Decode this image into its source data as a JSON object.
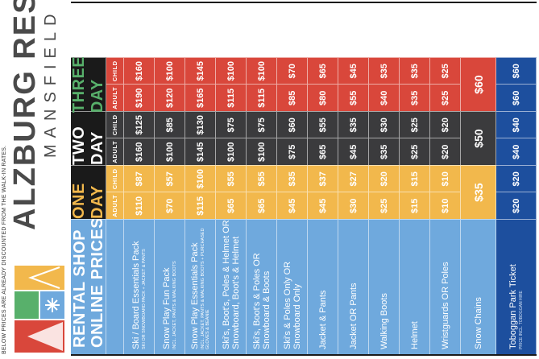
{
  "brand": {
    "name": "ALZBURG RESORT",
    "sub": "MANSFIELD",
    "note": "BELOW PRICES ARE ALREADY DISCOUNTED FROM THE WALK-IN RATES.",
    "logo_icon": "abstract-mountain-snowflake-logo"
  },
  "header": {
    "title_line1": "RENTAL SHOP",
    "title_line2": "ONLINE PRICES",
    "groups": [
      "ONE DAY",
      "TWO DAY",
      "THREE DAY"
    ],
    "adult": "ADULT",
    "child": "CHILD"
  },
  "items": [
    {
      "name": "Ski / Board Essentials Pack",
      "sub": "SKI OR SNOWBOARD PACK + JACKET & PANTS",
      "prices": [
        "$110",
        "$87",
        "$160",
        "$125",
        "$190",
        "$160"
      ]
    },
    {
      "name": "Snow Play Fun Pack",
      "sub": "INCL. JACKET, PANTS & WALKING BOOTS",
      "prices": [
        "$70",
        "$57",
        "$100",
        "$85",
        "$120",
        "$100"
      ]
    },
    {
      "name": "Snow Play Essentials Pack",
      "sub": "INCL. JACKET, PANTS & WALKING BOOTS + PURCHASED GLOVES & BEANIE",
      "prices": [
        "$115",
        "$100",
        "$145",
        "$130",
        "$165",
        "$145"
      ]
    },
    {
      "name": "Ski's, Boot's, Poles & Helmet OR Snowboard, Boot's & Helmet",
      "sub": "",
      "prices": [
        "$65",
        "$55",
        "$100",
        "$75",
        "$115",
        "$100"
      ]
    },
    {
      "name": "Ski's, Boot's & Poles OR Snowboard & Boots",
      "sub": "",
      "prices": [
        "$65",
        "$55",
        "$100",
        "$75",
        "$115",
        "$100"
      ]
    },
    {
      "name": "Ski's & Poles Only OR Snowboard Only",
      "sub": "",
      "prices": [
        "$45",
        "$35",
        "$75",
        "$60",
        "$85",
        "$70"
      ]
    },
    {
      "name": "Jacket & Pants",
      "sub": "",
      "prices": [
        "$45",
        "$37",
        "$65",
        "$55",
        "$80",
        "$65"
      ]
    },
    {
      "name": "Jacket OR Pants",
      "sub": "",
      "prices": [
        "$30",
        "$27",
        "$45",
        "$35",
        "$55",
        "$45"
      ]
    },
    {
      "name": "Walking Boots",
      "sub": "",
      "prices": [
        "$25",
        "$20",
        "$35",
        "$30",
        "$40",
        "$35"
      ]
    },
    {
      "name": "Helmet",
      "sub": "",
      "prices": [
        "$15",
        "$15",
        "$25",
        "$25",
        "$35",
        "$35"
      ]
    },
    {
      "name": "Wristguards OR Poles",
      "sub": "",
      "prices": [
        "$10",
        "$10",
        "$20",
        "$20",
        "$25",
        "$25"
      ]
    }
  ],
  "chains": {
    "name": "Snow Chains",
    "prices": [
      "$35",
      "$50",
      "$60"
    ]
  },
  "toboggan": {
    "name": "Toboggan Park Ticket",
    "sub": "PRICE INCL. TOBOGGAN HIRE",
    "prices": [
      "$20",
      "$20",
      "$40",
      "$40",
      "$60",
      "$60"
    ]
  },
  "colors": {
    "one_day": "#f2b84c",
    "two_day": "#3b3b3d",
    "three_day": "#d9473b",
    "label_blue": "#6fa9dd",
    "footer_blue": "#1d4f9e"
  }
}
